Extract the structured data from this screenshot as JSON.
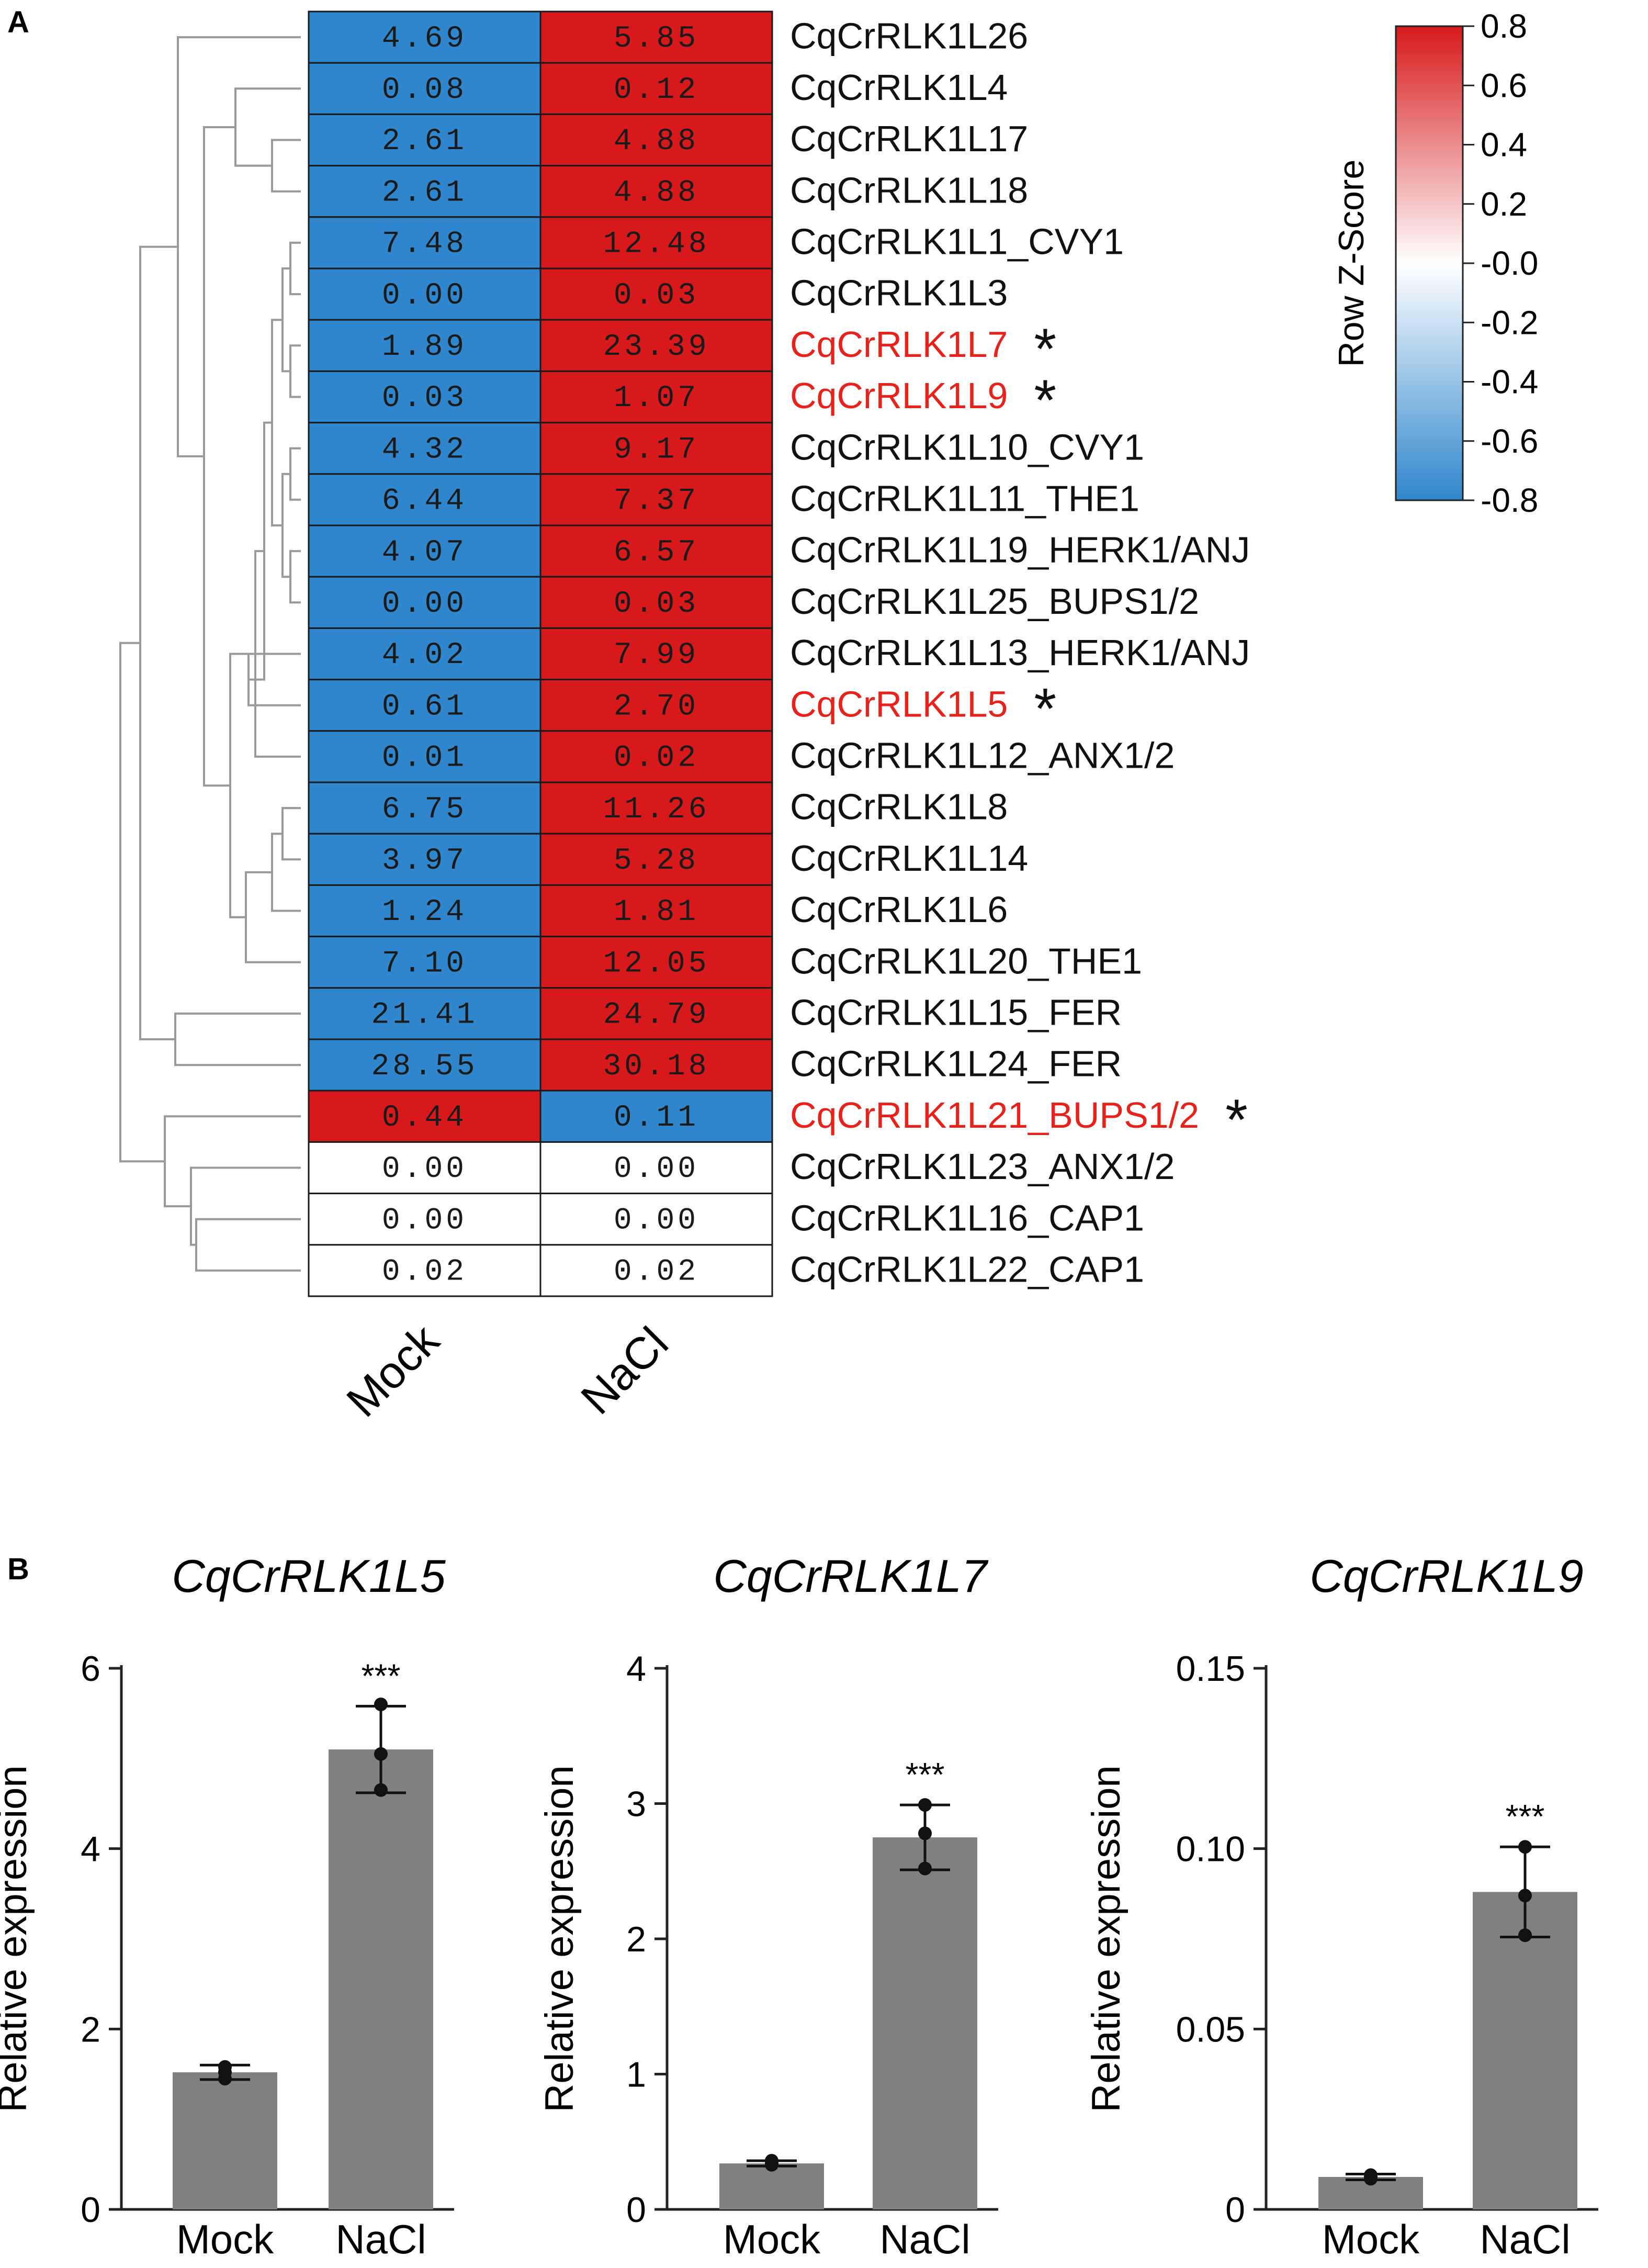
{
  "panel_a_label": "A",
  "panel_b_label": "B",
  "chart_data": [
    {
      "type": "heatmap",
      "title": "",
      "columns": [
        "Mock",
        "NaCl"
      ],
      "colorbar": {
        "label": "Row Z-Score",
        "min": -0.8,
        "max": 0.8,
        "ticks": [
          "0.8",
          "0.6",
          "0.4",
          "0.2",
          "-0.0",
          "-0.2",
          "-0.4",
          "-0.6",
          "-0.8"
        ],
        "low_color": "#2f86cc",
        "mid_color": "#ffffff",
        "high_color": "#d7191c"
      },
      "rows": [
        {
          "gene": "CqCrRLK1L26",
          "mock": "4.69",
          "nacl": "5.85",
          "highlight": false
        },
        {
          "gene": "CqCrRLK1L4",
          "mock": "0.08",
          "nacl": "0.12",
          "highlight": false
        },
        {
          "gene": "CqCrRLK1L17",
          "mock": "2.61",
          "nacl": "4.88",
          "highlight": false
        },
        {
          "gene": "CqCrRLK1L18",
          "mock": "2.61",
          "nacl": "4.88",
          "highlight": false
        },
        {
          "gene": "CqCrRLK1L1_CVY1",
          "mock": "7.48",
          "nacl": "12.48",
          "highlight": false
        },
        {
          "gene": "CqCrRLK1L3",
          "mock": "0.00",
          "nacl": "0.03",
          "highlight": false
        },
        {
          "gene": "CqCrRLK1L7",
          "mock": "1.89",
          "nacl": "23.39",
          "highlight": true
        },
        {
          "gene": "CqCrRLK1L9",
          "mock": "0.03",
          "nacl": "1.07",
          "highlight": true
        },
        {
          "gene": "CqCrRLK1L10_CVY1",
          "mock": "4.32",
          "nacl": "9.17",
          "highlight": false
        },
        {
          "gene": "CqCrRLK1L11_THE1",
          "mock": "6.44",
          "nacl": "7.37",
          "highlight": false
        },
        {
          "gene": "CqCrRLK1L19_HERK1/ANJ",
          "mock": "4.07",
          "nacl": "6.57",
          "highlight": false
        },
        {
          "gene": "CqCrRLK1L25_BUPS1/2",
          "mock": "0.00",
          "nacl": "0.03",
          "highlight": false
        },
        {
          "gene": "CqCrRLK1L13_HERK1/ANJ",
          "mock": "4.02",
          "nacl": "7.99",
          "highlight": false
        },
        {
          "gene": "CqCrRLK1L5",
          "mock": "0.61",
          "nacl": "2.70",
          "highlight": true
        },
        {
          "gene": "CqCrRLK1L12_ANX1/2",
          "mock": "0.01",
          "nacl": "0.02",
          "highlight": false
        },
        {
          "gene": "CqCrRLK1L8",
          "mock": "6.75",
          "nacl": "11.26",
          "highlight": false
        },
        {
          "gene": "CqCrRLK1L14",
          "mock": "3.97",
          "nacl": "5.28",
          "highlight": false
        },
        {
          "gene": "CqCrRLK1L6",
          "mock": "1.24",
          "nacl": "1.81",
          "highlight": false
        },
        {
          "gene": "CqCrRLK1L20_THE1",
          "mock": "7.10",
          "nacl": "12.05",
          "highlight": false
        },
        {
          "gene": "CqCrRLK1L15_FER",
          "mock": "21.41",
          "nacl": "24.79",
          "highlight": false
        },
        {
          "gene": "CqCrRLK1L24_FER",
          "mock": "28.55",
          "nacl": "30.18",
          "highlight": false
        },
        {
          "gene": "CqCrRLK1L21_BUPS1/2",
          "mock": "0.44",
          "nacl": "0.11",
          "highlight": true
        },
        {
          "gene": "CqCrRLK1L23_ANX1/2",
          "mock": "0.00",
          "nacl": "0.00",
          "highlight": false
        },
        {
          "gene": "CqCrRLK1L16_CAP1",
          "mock": "0.00",
          "nacl": "0.00",
          "highlight": false
        },
        {
          "gene": "CqCrRLK1L22_CAP1",
          "mock": "0.02",
          "nacl": "0.02",
          "highlight": false
        }
      ],
      "significance_marker": "*",
      "highlight_color": "#e8221b"
    },
    {
      "type": "bar",
      "title": "CqCrRLK1L5",
      "categories": [
        "Mock",
        "NaCl"
      ],
      "values": [
        1.52,
        5.1
      ],
      "errors": [
        0.08,
        0.48
      ],
      "points": [
        [
          1.45,
          1.52,
          1.58
        ],
        [
          4.65,
          5.05,
          5.6
        ]
      ],
      "ylabel": "Relative expression",
      "ylim": [
        0,
        6
      ],
      "yticks": [
        "0",
        "2",
        "4",
        "6"
      ],
      "ytick_values": [
        0,
        2,
        4,
        6
      ],
      "significance": "***"
    },
    {
      "type": "bar",
      "title": "CqCrRLK1L7",
      "categories": [
        "Mock",
        "NaCl"
      ],
      "values": [
        0.34,
        2.75
      ],
      "errors": [
        0.02,
        0.24
      ],
      "points": [
        [
          0.33,
          0.34,
          0.36
        ],
        [
          2.52,
          2.78,
          2.99
        ]
      ],
      "ylabel": "Relative expression",
      "ylim": [
        0,
        4
      ],
      "yticks": [
        "0",
        "1",
        "2",
        "3",
        "4"
      ],
      "ytick_values": [
        0,
        1,
        2,
        3,
        4
      ],
      "significance": "***"
    },
    {
      "type": "bar",
      "title": "CqCrRLK1L9",
      "categories": [
        "Mock",
        "NaCl"
      ],
      "values": [
        0.009,
        0.088
      ],
      "errors": [
        0.0008,
        0.0125
      ],
      "points": [
        [
          0.0085,
          0.009,
          0.0095
        ],
        [
          0.076,
          0.087,
          0.1005
        ]
      ],
      "ylabel": "Relative expression",
      "ylim": [
        0,
        0.15
      ],
      "yticks": [
        "0",
        "0.05",
        "0.10",
        "0.15"
      ],
      "ytick_values": [
        0,
        0.05,
        0.1,
        0.15
      ],
      "significance": "***"
    }
  ]
}
